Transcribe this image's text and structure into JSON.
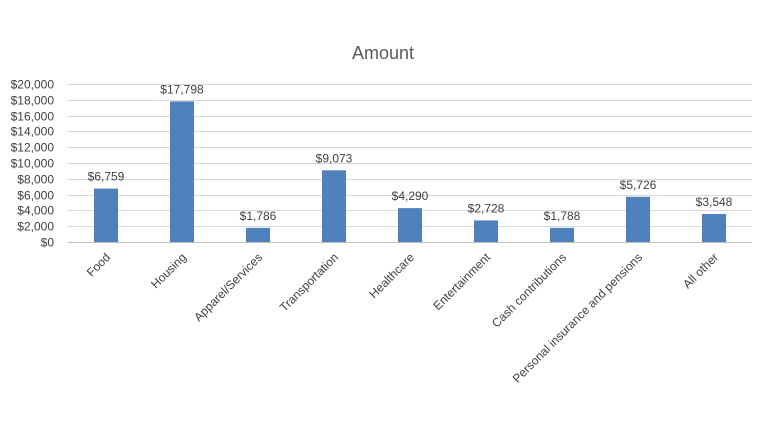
{
  "chart_data": {
    "type": "bar",
    "title": "Amount",
    "xlabel": "",
    "ylabel": "",
    "categories": [
      "Food",
      "Housing",
      "Apparel/Services",
      "Transportation",
      "Healthcare",
      "Entertainment",
      "Cash contributions",
      "Personal insurance and pensions",
      "All other"
    ],
    "values": [
      6759,
      17798,
      1786,
      9073,
      4290,
      2728,
      1788,
      5726,
      3548
    ],
    "data_labels": [
      "$6,759",
      "$17,798",
      "$1,786",
      "$9,073",
      "$4,290",
      "$2,728",
      "$1,788",
      "$5,726",
      "$3,548"
    ],
    "ylim": [
      0,
      20000
    ],
    "y_ticks": [
      0,
      2000,
      4000,
      6000,
      8000,
      10000,
      12000,
      14000,
      16000,
      18000,
      20000
    ],
    "y_tick_labels": [
      "$0",
      "$2,000",
      "$4,000",
      "$6,000",
      "$8,000",
      "$10,000",
      "$12,000",
      "$14,000",
      "$16,000",
      "$18,000",
      "$20,000"
    ],
    "grid": true,
    "legend": "none",
    "bar_color": "#4f81bd"
  }
}
